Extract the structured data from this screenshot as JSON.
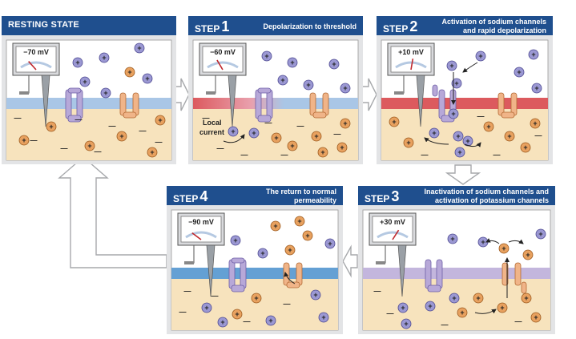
{
  "panels": {
    "resting": {
      "title": "RESTING STATE",
      "voltage": "−70 mV"
    },
    "step1": {
      "step_label": "STEP",
      "step_number": "1",
      "description": [
        "Depolarization to threshold"
      ],
      "voltage": "−60 mV",
      "local_current": [
        "Local",
        "current"
      ]
    },
    "step2": {
      "step_label": "STEP",
      "step_number": "2",
      "description": [
        "Activation of sodium channels",
        "and rapid depolarization"
      ],
      "voltage": "+10 mV"
    },
    "step3": {
      "step_label": "STEP",
      "step_number": "3",
      "description": [
        "Inactivation of sodium channels and",
        "activation of potassium channels"
      ],
      "voltage": "+30 mV"
    },
    "step4": {
      "step_label": "STEP",
      "step_number": "4",
      "description": [
        "The return to normal",
        "permeability"
      ],
      "voltage": "−90 mV"
    }
  },
  "symbols": {
    "plus": "+",
    "minus": "—"
  },
  "colors": {
    "header": "#1f4f8e",
    "panel_bg": "#e3e4e6",
    "extracellular": "#ffffff",
    "intracellular": "#f7e3bd",
    "membrane_resting": "#a9c6e6",
    "membrane_depolarized": "#dc5a5e",
    "membrane_inactivated": "#c3b6dd",
    "membrane_step4": "#64a0d4",
    "sodium_ion": "#9b98d3",
    "potassium_ion": "#e8a15f",
    "sodium_channel": "#b7a8d8",
    "potassium_channel": "#f0b488"
  }
}
